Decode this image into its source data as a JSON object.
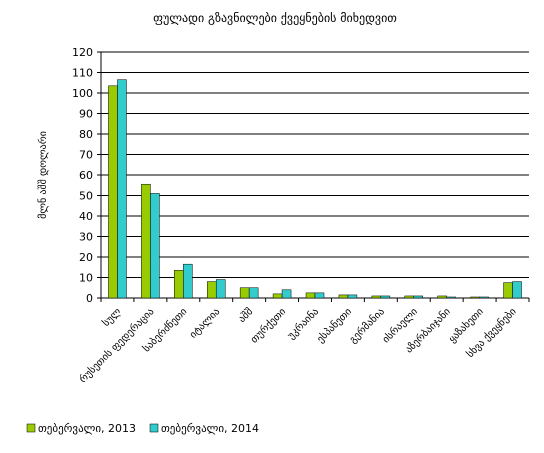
{
  "chart_data": {
    "type": "bar",
    "title": "ფულადი გზავნილები ქვეყნების მიხედვით",
    "ylabel": "მლნ აშშ დოლარი",
    "xlabel": "",
    "ylim": [
      0,
      120
    ],
    "yticks": [
      0,
      10,
      20,
      30,
      40,
      50,
      60,
      70,
      80,
      90,
      100,
      110,
      120
    ],
    "grid": true,
    "legend_position": "bottom-left",
    "categories": [
      "სულ",
      "რუსეთის ფედერაცია",
      "საბერძნეთი",
      "იტალია",
      "აშშ",
      "თურქეთი",
      "უკრაინა",
      "ესპანეთი",
      "გერმანია",
      "ისრაელი",
      "აზერბაიჯანი",
      "ყაზახეთი",
      "სხვა ქვეყნები"
    ],
    "series": [
      {
        "name": "თებერვალი, 2013",
        "color": "#99cc00",
        "values": [
          103.5,
          55.5,
          13.5,
          8.0,
          5.0,
          2.0,
          2.5,
          1.5,
          1.0,
          1.0,
          1.0,
          0.5,
          7.5
        ]
      },
      {
        "name": "თებერვალი, 2014",
        "color": "#33cccc",
        "values": [
          106.5,
          51.0,
          16.5,
          9.0,
          5.0,
          4.0,
          2.5,
          1.5,
          1.0,
          1.0,
          0.5,
          0.5,
          8.0
        ]
      }
    ]
  }
}
